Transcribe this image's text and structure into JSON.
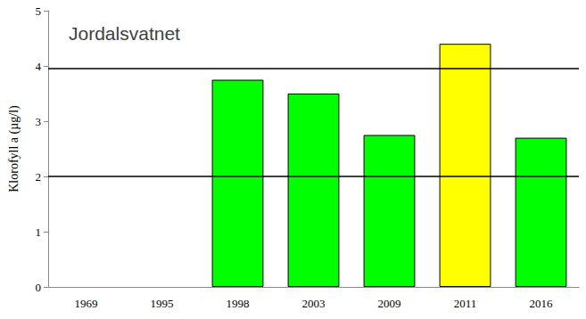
{
  "chart_data": {
    "type": "bar",
    "title": "Jordalsvatnet",
    "y_label": "Klorofyll a (µg/l)",
    "categories": [
      "1969",
      "1995",
      "1998",
      "2003",
      "2009",
      "2011",
      "2016"
    ],
    "values": [
      null,
      null,
      3.75,
      3.5,
      2.75,
      4.4,
      2.7
    ],
    "colors": [
      null,
      null,
      "#00ff00",
      "#00ff00",
      "#00ff00",
      "#ffff00",
      "#00ff00"
    ],
    "reference_lines": [
      2,
      3.95
    ],
    "ylim": [
      0,
      5
    ],
    "yticks": [
      0,
      1,
      2,
      3,
      4,
      5
    ],
    "grid": false
  }
}
